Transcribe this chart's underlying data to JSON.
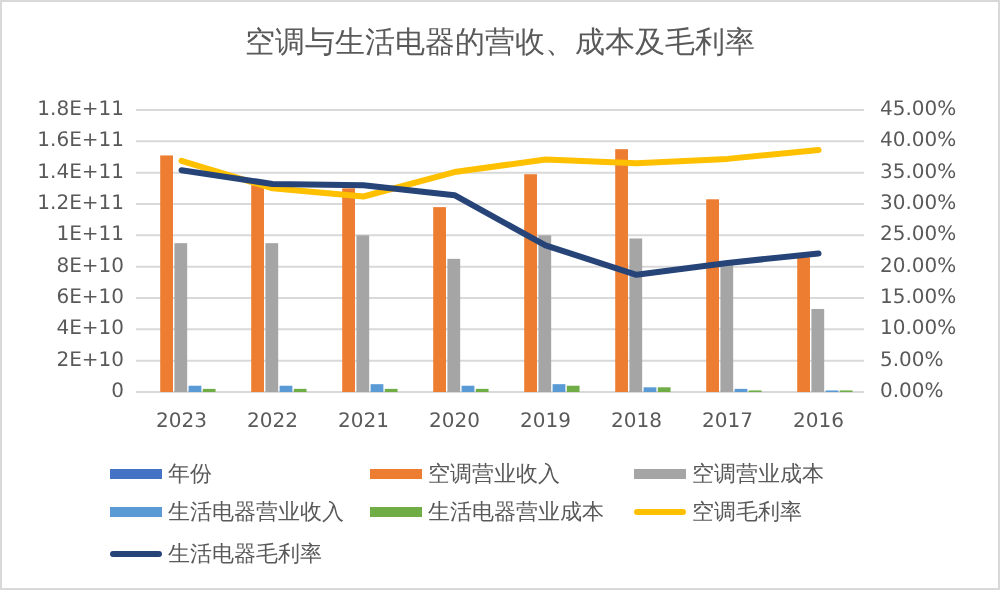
{
  "chart_data": {
    "type": "bar",
    "title": "空调与生活电器的营收、成本及毛利率",
    "categories": [
      "2023",
      "2022",
      "2021",
      "2020",
      "2019",
      "2018",
      "2017",
      "2016"
    ],
    "series": [
      {
        "name": "年份",
        "color": "#4472c4",
        "values": [
          null,
          null,
          null,
          null,
          null,
          null,
          null,
          null
        ]
      },
      {
        "name": "空调营业收入",
        "color": "#ed7d31",
        "values": [
          151000000000,
          132000000000,
          130000000000,
          118000000000,
          139000000000,
          155000000000,
          123000000000,
          86000000000
        ]
      },
      {
        "name": "空调营业成本",
        "color": "#a5a5a5",
        "values": [
          95000000000,
          95000000000,
          100000000000,
          85000000000,
          100000000000,
          98000000000,
          83000000000,
          53000000000
        ]
      },
      {
        "name": "生活电器营业收入",
        "color": "#5b9bd5",
        "values": [
          4000000000,
          4000000000,
          5000000000,
          4000000000,
          5000000000,
          3000000000,
          2000000000,
          1000000000
        ]
      },
      {
        "name": "生活电器营业成本",
        "color": "#70ad47",
        "values": [
          2000000000,
          2000000000,
          2000000000,
          2000000000,
          4000000000,
          3000000000,
          1000000000,
          1000000000
        ]
      },
      {
        "name": "空调毛利率",
        "type": "line",
        "axis": "y2",
        "color": "#ffc000",
        "values": [
          36.9,
          32.5,
          31.2,
          35.1,
          37.1,
          36.5,
          37.2,
          38.6
        ]
      },
      {
        "name": "生活电器毛利率",
        "type": "line",
        "axis": "y2",
        "color": "#264478",
        "values": [
          35.4,
          33.2,
          33.0,
          31.4,
          23.4,
          18.7,
          20.6,
          22.1
        ]
      }
    ],
    "ylim": [
      0,
      180000000000
    ],
    "yticks": [
      {
        "value": 0,
        "label": "0"
      },
      {
        "value": 20000000000,
        "label": "2E+10"
      },
      {
        "value": 40000000000,
        "label": "4E+10"
      },
      {
        "value": 60000000000,
        "label": "6E+10"
      },
      {
        "value": 80000000000,
        "label": "8E+10"
      },
      {
        "value": 100000000000,
        "label": "1E+11"
      },
      {
        "value": 120000000000,
        "label": "1.2E+11"
      },
      {
        "value": 140000000000,
        "label": "1.4E+11"
      },
      {
        "value": 160000000000,
        "label": "1.6E+11"
      },
      {
        "value": 180000000000,
        "label": "1.8E+11"
      }
    ],
    "y2lim": [
      0,
      45
    ],
    "y2ticks": [
      {
        "value": 0,
        "label": "0.00%"
      },
      {
        "value": 5,
        "label": "5.00%"
      },
      {
        "value": 10,
        "label": "10.00%"
      },
      {
        "value": 15,
        "label": "15.00%"
      },
      {
        "value": 20,
        "label": "20.00%"
      },
      {
        "value": 25,
        "label": "25.00%"
      },
      {
        "value": 30,
        "label": "30.00%"
      },
      {
        "value": 35,
        "label": "35.00%"
      },
      {
        "value": 40,
        "label": "40.00%"
      },
      {
        "value": 45,
        "label": "45.00%"
      }
    ],
    "grid": "y",
    "legend": "bottom"
  }
}
